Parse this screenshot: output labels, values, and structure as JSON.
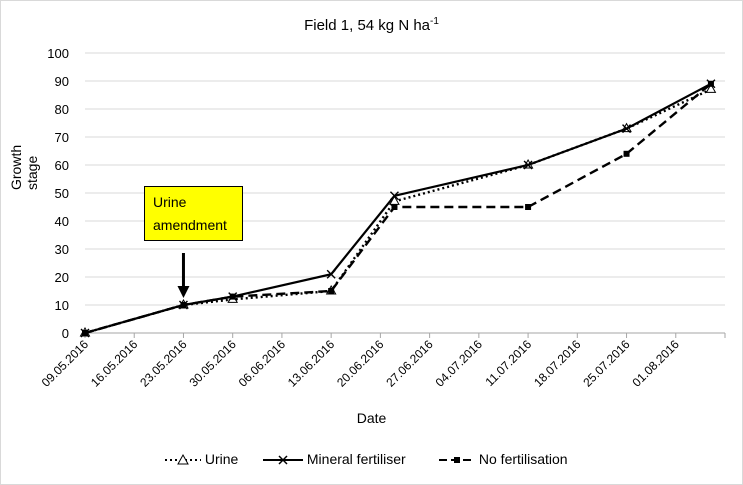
{
  "chart_data": {
    "type": "line",
    "title": "Field 1, 54 kg N ha",
    "title_superscript": "-1",
    "xlabel": "Date",
    "ylabel": "Growth stage",
    "ylim": [
      0,
      100
    ],
    "yticks": [
      0,
      10,
      20,
      30,
      40,
      50,
      60,
      70,
      80,
      90,
      100
    ],
    "xticks": [
      "09.05.2016",
      "16.05.2016",
      "23.05.2016",
      "30.05.2016",
      "06.06.2016",
      "13.06.2016",
      "20.06.2016",
      "27.06.2016",
      "04.07.2016",
      "11.07.2016",
      "18.07.2016",
      "25.07.2016",
      "01.08.2016"
    ],
    "xlim": [
      "09.05.2016",
      "08.08.2016"
    ],
    "grid": "horizontal",
    "legend_position": "bottom",
    "series": [
      {
        "name": "Urine",
        "style": "dotted",
        "marker": "triangle-open",
        "color": "#000000",
        "points": [
          {
            "x": "09.05.2016",
            "y": 0
          },
          {
            "x": "23.05.2016",
            "y": 10
          },
          {
            "x": "30.05.2016",
            "y": 12
          },
          {
            "x": "13.06.2016",
            "y": 15
          },
          {
            "x": "22.06.2016",
            "y": 47
          },
          {
            "x": "11.07.2016",
            "y": 60
          },
          {
            "x": "25.07.2016",
            "y": 73
          },
          {
            "x": "06.08.2016",
            "y": 87
          }
        ]
      },
      {
        "name": "Mineral fertiliser",
        "style": "solid",
        "marker": "x",
        "color": "#000000",
        "points": [
          {
            "x": "09.05.2016",
            "y": 0
          },
          {
            "x": "23.05.2016",
            "y": 10
          },
          {
            "x": "30.05.2016",
            "y": 13
          },
          {
            "x": "13.06.2016",
            "y": 21
          },
          {
            "x": "22.06.2016",
            "y": 49
          },
          {
            "x": "11.07.2016",
            "y": 60
          },
          {
            "x": "25.07.2016",
            "y": 73
          },
          {
            "x": "06.08.2016",
            "y": 89
          }
        ]
      },
      {
        "name": "No fertilisation",
        "style": "dashed",
        "marker": "square",
        "color": "#000000",
        "points": [
          {
            "x": "09.05.2016",
            "y": 0
          },
          {
            "x": "23.05.2016",
            "y": 10
          },
          {
            "x": "30.05.2016",
            "y": 13
          },
          {
            "x": "13.06.2016",
            "y": 15
          },
          {
            "x": "22.06.2016",
            "y": 45
          },
          {
            "x": "11.07.2016",
            "y": 45
          },
          {
            "x": "25.07.2016",
            "y": 64
          },
          {
            "x": "06.08.2016",
            "y": 89
          }
        ]
      }
    ],
    "annotation": {
      "line1": "Urine",
      "line2": "amendment",
      "points_to": "23.05.2016",
      "background": "#ffff00"
    }
  }
}
